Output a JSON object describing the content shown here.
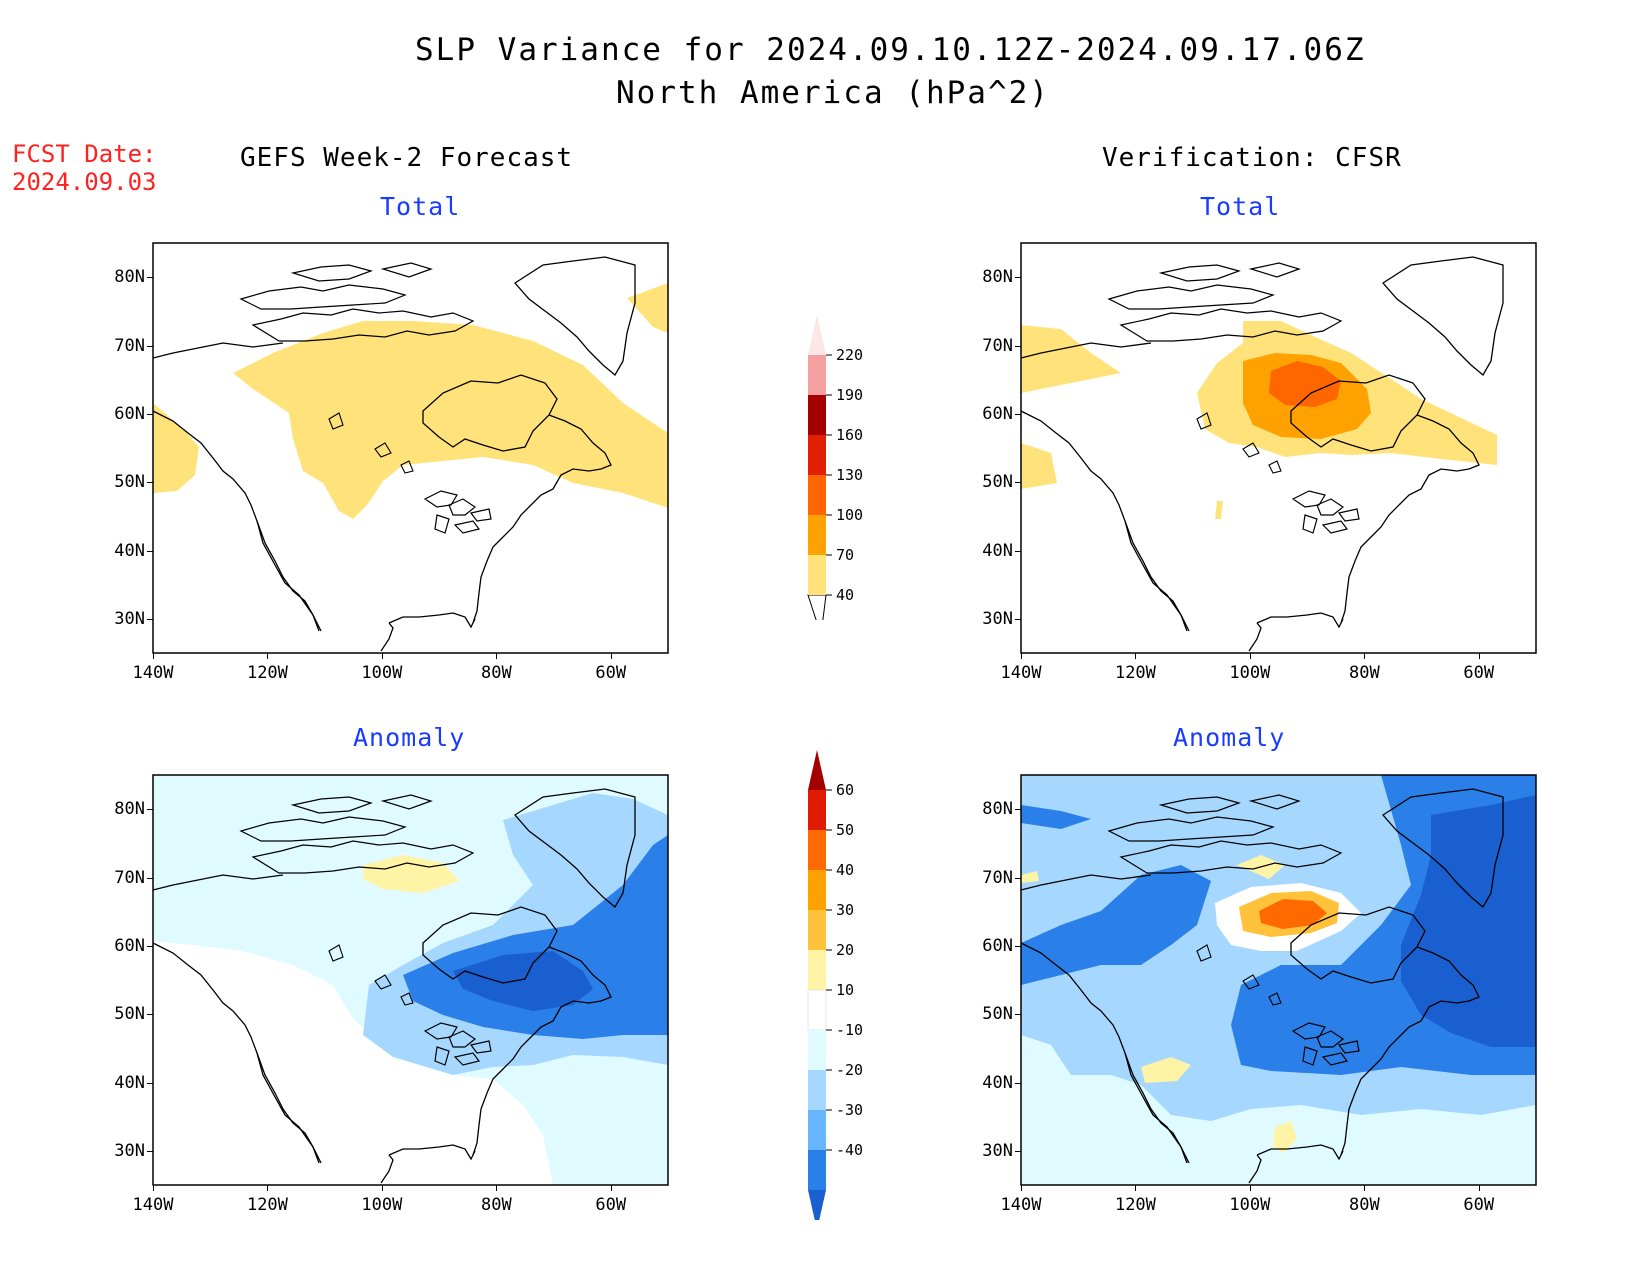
{
  "header": {
    "title_line1": "SLP Variance for 2024.09.10.12Z-2024.09.17.06Z",
    "title_line2": "North America (hPa^2)",
    "fcst_label": "FCST Date:",
    "fcst_date": "2024.09.03"
  },
  "columns": {
    "left_title": "GEFS Week-2 Forecast",
    "right_title": "Verification: CFSR"
  },
  "panels": {
    "total_label": "Total",
    "anomaly_label": "Anomaly"
  },
  "axes": {
    "lat_labels": [
      "80N",
      "70N",
      "60N",
      "50N",
      "40N",
      "30N"
    ],
    "lon_labels": [
      "140W",
      "120W",
      "100W",
      "80W",
      "60W"
    ],
    "lat_range": [
      25,
      85
    ],
    "lon_range": [
      -140,
      -50
    ]
  },
  "colorbars": {
    "total": {
      "levels": [
        "40",
        "70",
        "100",
        "130",
        "160",
        "190",
        "220"
      ],
      "colors": [
        "#ffe37a",
        "#ffa200",
        "#ff6600",
        "#e02000",
        "#a50000",
        "#f4a0a0",
        "#fde6e6"
      ]
    },
    "anomaly": {
      "levels": [
        "60",
        "50",
        "40",
        "30",
        "20",
        "10",
        "-10",
        "-20",
        "-30",
        "-40"
      ],
      "colors": [
        "#a50000",
        "#e01a00",
        "#ff6a00",
        "#ffa200",
        "#ffc23a",
        "#fff4a5",
        "#ffffff",
        "#e0fbff",
        "#a6d8ff",
        "#68b6ff",
        "#2a7fe8",
        "#1a5fd0"
      ]
    }
  },
  "colors": {
    "title_accent": "#ff2020",
    "subtitle_accent": "#1a3cff"
  }
}
